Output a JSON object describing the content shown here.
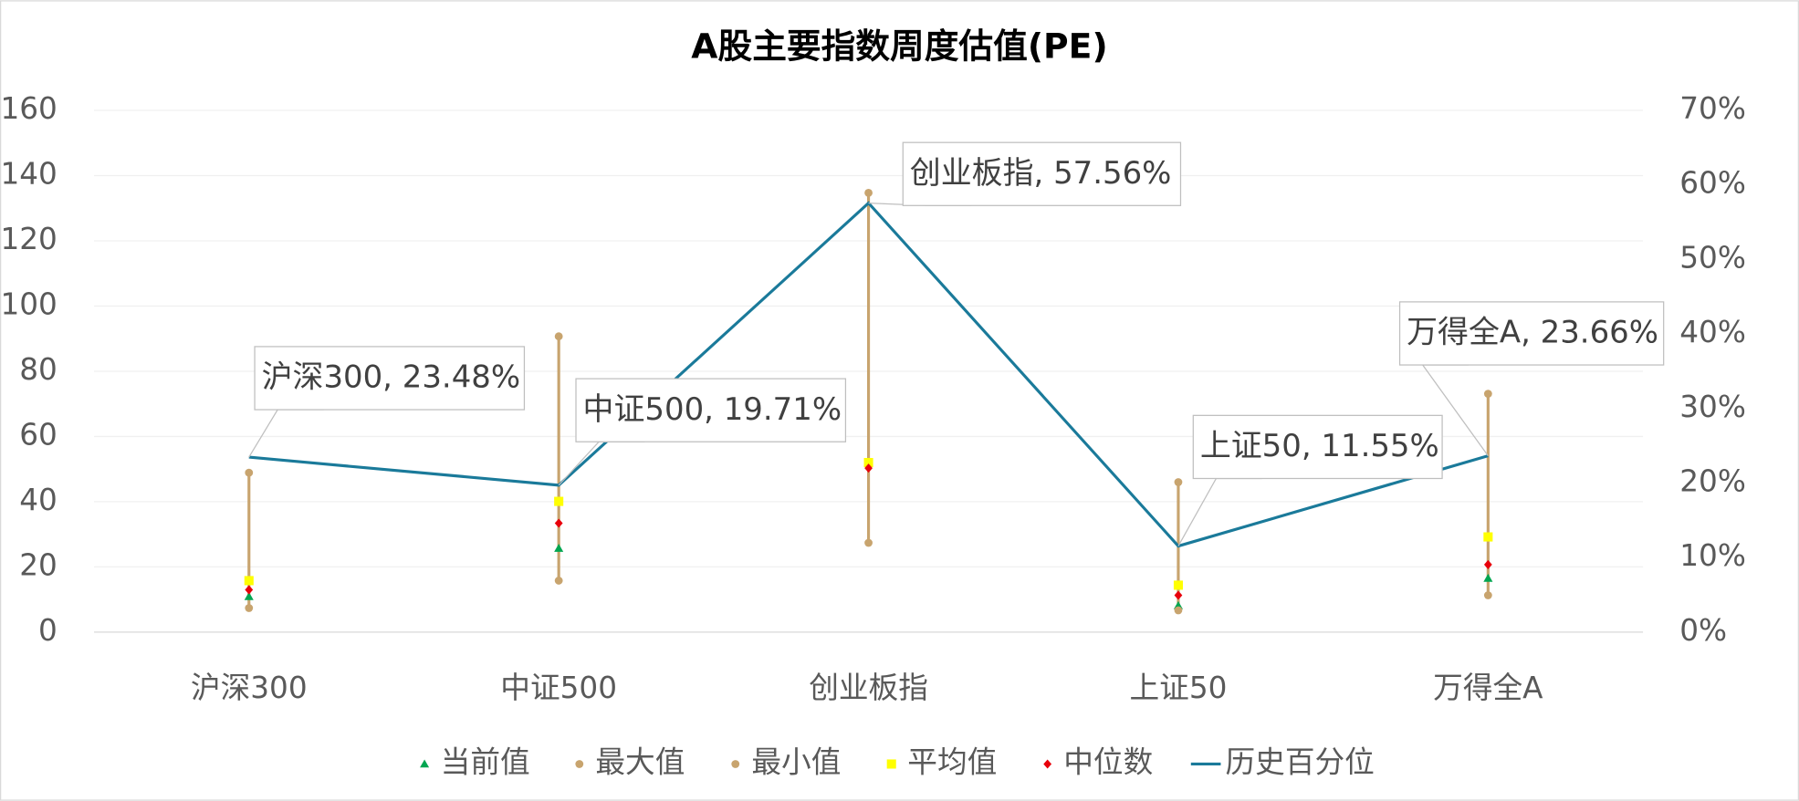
{
  "chart_data": {
    "type": "line",
    "title": "A股主要指数周度估值(PE)",
    "categories": [
      "沪深300",
      "中证500",
      "创业板指",
      "上证50",
      "万得全A"
    ],
    "ylim": [
      0,
      160
    ],
    "yticks": [
      0,
      20,
      40,
      60,
      80,
      100,
      120,
      140,
      160
    ],
    "y2lim": [
      0,
      70
    ],
    "y2ticks": [
      {
        "value": 0,
        "label": "0%"
      },
      {
        "value": 10,
        "label": "10%"
      },
      {
        "value": 20,
        "label": "20%"
      },
      {
        "value": 30,
        "label": "30%"
      },
      {
        "value": 40,
        "label": "40%"
      },
      {
        "value": 50,
        "label": "50%"
      },
      {
        "value": 60,
        "label": "60%"
      },
      {
        "value": 70,
        "label": "70%"
      }
    ],
    "grid": true,
    "legend": "bottom",
    "series": [
      {
        "name": "当前值",
        "color": "#00a651",
        "marker": "triangle",
        "values": [
          10.9,
          25.7,
          52,
          8.1,
          16.5
        ]
      },
      {
        "name": "最大值",
        "color": "#c8a46e",
        "marker": "circle",
        "values": [
          48.9,
          90.7,
          134.7,
          46,
          73.1
        ]
      },
      {
        "name": "最小值",
        "color": "#c8a46e",
        "marker": "circle",
        "values": [
          7.4,
          15.8,
          27.4,
          6.7,
          11.3
        ]
      },
      {
        "name": "平均值",
        "color": "#ffff00",
        "marker": "square",
        "values": [
          15.8,
          40.1,
          52,
          14.4,
          29.2
        ]
      },
      {
        "name": "中位数",
        "color": "#e8000b",
        "marker": "diamond",
        "values": [
          13,
          33.4,
          50.3,
          11.3,
          20.7
        ]
      },
      {
        "name": "历史百分位",
        "color": "#1a7a9a",
        "marker": "line",
        "axis": "y2",
        "values": [
          23.48,
          19.71,
          57.56,
          11.55,
          23.66
        ],
        "value_labels": [
          "沪深300, 23.48%",
          "中证500, 19.71%",
          "创业板指, 57.56%",
          "上证50, 11.55%",
          "万得全A, 23.66%"
        ]
      }
    ]
  }
}
